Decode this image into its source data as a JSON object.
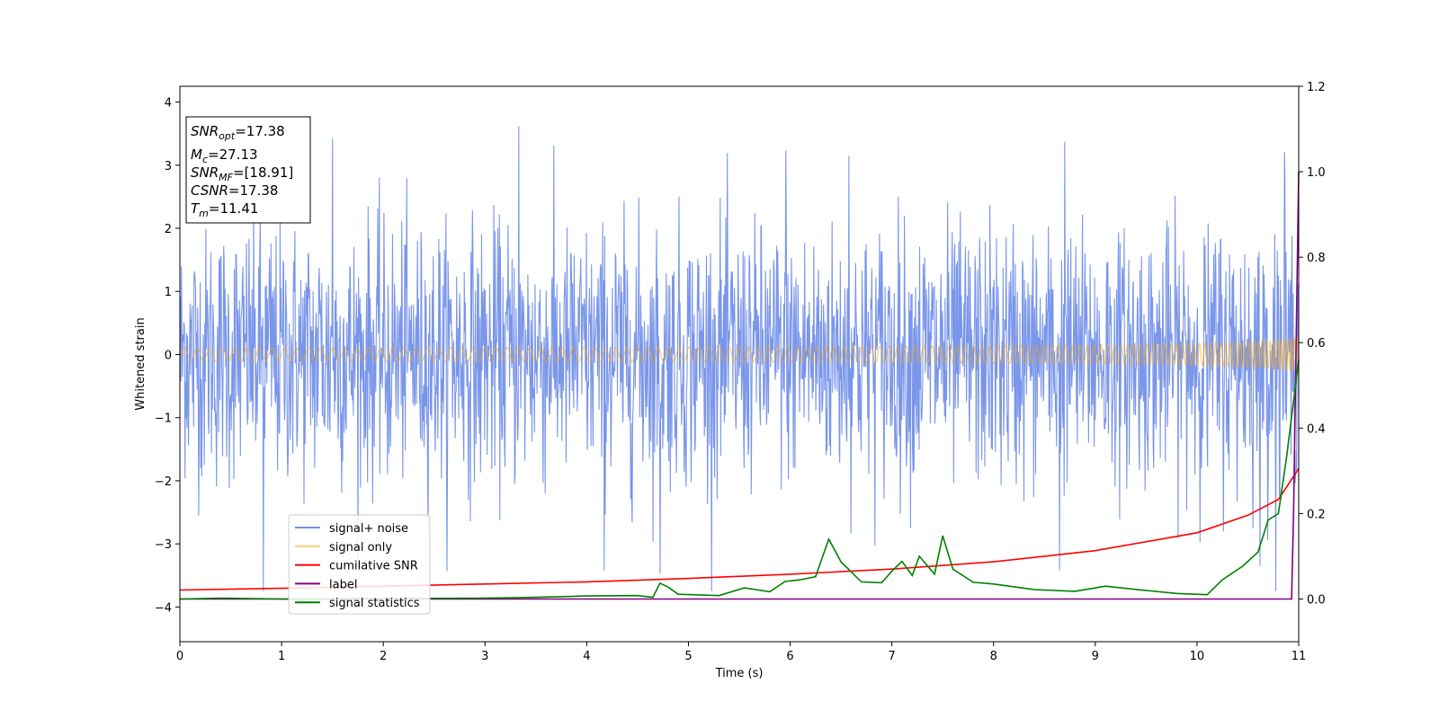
{
  "chart_data": {
    "type": "line",
    "xlabel": "Time (s)",
    "ylabel": "Whitened strain",
    "xlim": [
      0,
      11
    ],
    "ylim": [
      -4.55,
      4.25
    ],
    "y2lim": [
      -0.1,
      1.2
    ],
    "xticks": [
      0,
      1,
      2,
      3,
      4,
      5,
      6,
      7,
      8,
      9,
      10,
      11
    ],
    "yticks": [
      -4,
      -3,
      -2,
      -1,
      0,
      1,
      2,
      3,
      4
    ],
    "y2ticks": [
      0.0,
      0.2,
      0.4,
      0.6,
      0.8,
      1.0,
      1.2
    ],
    "grid": false,
    "legend_position": "lower-left",
    "annotation": {
      "lines": [
        {
          "name": "SNR",
          "sub": "opt",
          "value": "=17.38"
        },
        {
          "name": "M",
          "sub": "c",
          "value": "=27.13"
        },
        {
          "name": "SNR",
          "sub": "MF",
          "value": "=[18.91]"
        },
        {
          "name": "CSNR",
          "sub": "",
          "value": "=17.38"
        },
        {
          "name": "T",
          "sub": "m",
          "value": "=11.41"
        }
      ]
    },
    "series": [
      {
        "name": "signal+ noise",
        "color": "#4169e1",
        "axis": "left",
        "noise_std": 1.0,
        "envelope_max": 3.6,
        "envelope_min": -3.75,
        "sample_count": 2200,
        "peaks": [
          {
            "x": 0.82,
            "y": -3.75
          },
          {
            "x": 1.5,
            "y": 3.42
          },
          {
            "x": 3.33,
            "y": 3.62
          },
          {
            "x": 4.17,
            "y": -3.42
          },
          {
            "x": 4.72,
            "y": -3.47
          },
          {
            "x": 5.96,
            "y": 3.23
          },
          {
            "x": 6.58,
            "y": 3.15
          },
          {
            "x": 8.65,
            "y": -3.42
          },
          {
            "x": 8.7,
            "y": 3.37
          },
          {
            "x": 10.62,
            "y": -3.35
          },
          {
            "x": 10.86,
            "y": 3.21
          }
        ]
      },
      {
        "name": "signal only",
        "color": "#ffa500",
        "axis": "left",
        "f0_hz": 8,
        "tc": 11.2,
        "amp_end": 0.28
      },
      {
        "name": "cumilative SNR",
        "color": "#ff0000",
        "axis": "right",
        "points": [
          [
            0,
            0.021
          ],
          [
            1,
            0.025
          ],
          [
            2,
            0.03
          ],
          [
            3,
            0.035
          ],
          [
            4,
            0.04
          ],
          [
            5,
            0.048
          ],
          [
            6,
            0.058
          ],
          [
            7,
            0.07
          ],
          [
            8,
            0.087
          ],
          [
            9,
            0.113
          ],
          [
            10,
            0.155
          ],
          [
            10.5,
            0.196
          ],
          [
            10.8,
            0.233
          ],
          [
            11,
            0.305
          ]
        ]
      },
      {
        "name": "label",
        "color": "#800080",
        "axis": "right",
        "points": [
          [
            0,
            0
          ],
          [
            10.93,
            0
          ],
          [
            10.95,
            0.2
          ],
          [
            11,
            1.0
          ]
        ]
      },
      {
        "name": "signal statistics",
        "color": "#008000",
        "axis": "right",
        "points": [
          [
            0,
            0.0
          ],
          [
            0.4,
            0.002
          ],
          [
            1.0,
            0.0
          ],
          [
            2.0,
            0.001
          ],
          [
            3.0,
            0.002
          ],
          [
            3.5,
            0.004
          ],
          [
            4.0,
            0.007
          ],
          [
            4.5,
            0.008
          ],
          [
            4.65,
            0.004
          ],
          [
            4.72,
            0.037
          ],
          [
            4.8,
            0.028
          ],
          [
            4.9,
            0.011
          ],
          [
            5.3,
            0.008
          ],
          [
            5.55,
            0.026
          ],
          [
            5.8,
            0.017
          ],
          [
            5.95,
            0.041
          ],
          [
            6.1,
            0.045
          ],
          [
            6.25,
            0.052
          ],
          [
            6.38,
            0.14
          ],
          [
            6.5,
            0.087
          ],
          [
            6.7,
            0.04
          ],
          [
            6.9,
            0.038
          ],
          [
            7.0,
            0.065
          ],
          [
            7.1,
            0.088
          ],
          [
            7.2,
            0.055
          ],
          [
            7.27,
            0.1
          ],
          [
            7.42,
            0.058
          ],
          [
            7.5,
            0.148
          ],
          [
            7.6,
            0.07
          ],
          [
            7.8,
            0.039
          ],
          [
            8.0,
            0.035
          ],
          [
            8.4,
            0.022
          ],
          [
            8.8,
            0.018
          ],
          [
            9.1,
            0.03
          ],
          [
            9.5,
            0.02
          ],
          [
            9.8,
            0.013
          ],
          [
            10.1,
            0.01
          ],
          [
            10.25,
            0.045
          ],
          [
            10.45,
            0.077
          ],
          [
            10.6,
            0.11
          ],
          [
            10.7,
            0.185
          ],
          [
            10.8,
            0.2
          ],
          [
            10.88,
            0.33
          ],
          [
            11.0,
            0.56
          ]
        ]
      }
    ]
  }
}
